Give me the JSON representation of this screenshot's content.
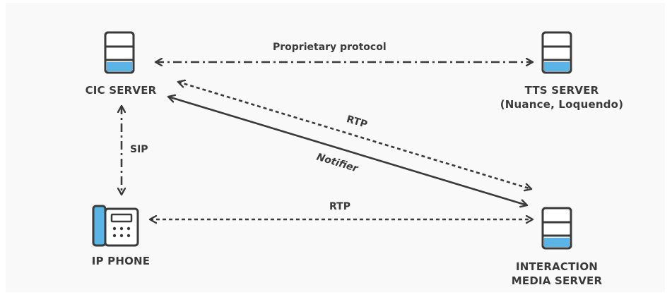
{
  "colors": {
    "outline": "#3a3a3a",
    "accent": "#5ab4e6",
    "background": "#f9f9f9"
  },
  "nodes": {
    "cic_server": {
      "label": "CIC SERVER",
      "icon": "server-icon"
    },
    "tts_server": {
      "label_line1": "TTS SERVER",
      "label_line2": "(Nuance, Loquendo)",
      "icon": "server-icon"
    },
    "ip_phone": {
      "label": "IP PHONE",
      "icon": "desk-phone-icon"
    },
    "media_server": {
      "label_line1": "INTERACTION",
      "label_line2": "MEDIA SERVER",
      "icon": "server-icon"
    }
  },
  "edges": {
    "proprietary": {
      "label": "Proprietary protocol"
    },
    "sip": {
      "label": "SIP"
    },
    "rtp_diagonal": {
      "label": "RTP"
    },
    "notifier": {
      "label": "Notifier"
    },
    "rtp_bottom": {
      "label": "RTP"
    }
  }
}
